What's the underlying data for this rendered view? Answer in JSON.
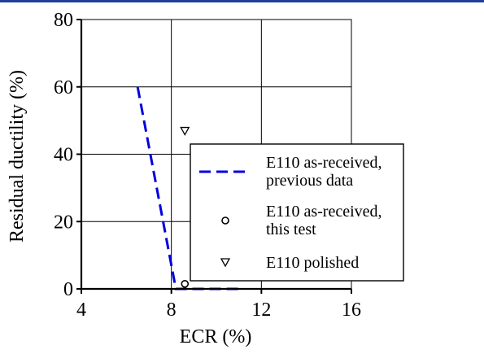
{
  "chart_data": {
    "type": "line",
    "title": "",
    "xlabel": "ECR (%)",
    "ylabel": "Residual ductility (%)",
    "xlim": [
      4,
      16
    ],
    "ylim": [
      0,
      80
    ],
    "x_ticks": [
      4,
      8,
      12,
      16
    ],
    "y_ticks": [
      0,
      20,
      40,
      60,
      80
    ],
    "x_tick_labels": [
      "4",
      "8",
      "12",
      "16"
    ],
    "y_tick_labels": [
      "0",
      "20",
      "40",
      "60",
      "80"
    ],
    "grid": true,
    "legend_position": "center-right",
    "series": [
      {
        "name": "E110 as-received, previous data",
        "legend_lines": [
          "E110 as-received,",
          "previous data"
        ],
        "style": "dashed-line",
        "color": "#0000dd",
        "points": [
          [
            6.5,
            60
          ],
          [
            8.2,
            0
          ],
          [
            11,
            0
          ]
        ]
      },
      {
        "name": "E110 as-received, this test",
        "legend_lines": [
          "E110 as-received,",
          "this test"
        ],
        "style": "circle-marker",
        "color": "#000000",
        "points": [
          [
            8.6,
            1.5
          ]
        ]
      },
      {
        "name": "E110 polished",
        "legend_lines": [
          "E110 polished"
        ],
        "style": "triangle-down-marker",
        "color": "#000000",
        "points": [
          [
            8.6,
            47
          ]
        ]
      }
    ]
  }
}
